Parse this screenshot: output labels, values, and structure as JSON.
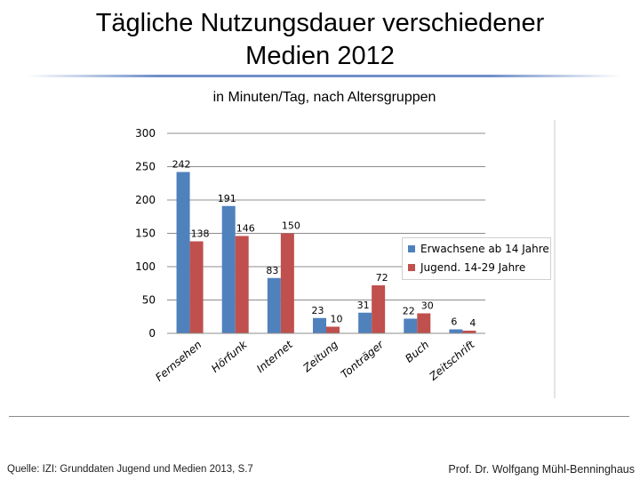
{
  "slide": {
    "title_line1": "Tägliche Nutzungsdauer verschiedener",
    "title_line2": "Medien 2012",
    "subtitle": "in Minuten/Tag, nach Altersgruppen",
    "source": "Quelle: IZI: Grunddaten Jugend und Medien 2013, S.7",
    "author": "Prof. Dr. Wolfgang Mühl-Benninghaus"
  },
  "chart_data": {
    "type": "bar",
    "title": "",
    "xlabel": "",
    "ylabel": "",
    "ylim": [
      0,
      300
    ],
    "yticks": [
      0,
      50,
      100,
      150,
      200,
      250,
      300
    ],
    "grid": true,
    "legend_position": "right",
    "categories": [
      "Fernsehen",
      "Hörfunk",
      "Internet",
      "Zeitung",
      "Tonträger",
      "Buch",
      "Zeitschrift"
    ],
    "series": [
      {
        "name": "Erwachsene ab 14 Jahre",
        "color": "#4f81bd",
        "values": [
          242,
          191,
          83,
          23,
          31,
          22,
          6
        ]
      },
      {
        "name": "Jugend. 14-29 Jahre",
        "color": "#c0504d",
        "values": [
          138,
          146,
          150,
          10,
          72,
          30,
          4
        ]
      }
    ]
  }
}
